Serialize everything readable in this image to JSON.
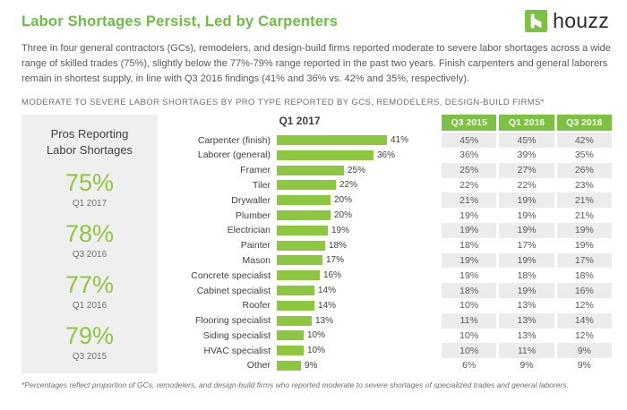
{
  "page": {
    "title": "Labor Shortages Persist, Led by Carpenters",
    "logo_text": "houzz",
    "intro": "Three in four general contractors (GCs), remodelers, and design-build firms reported moderate to severe labor shortages across a wide range of skilled trades (75%), slightly below the 77%-79% range reported in the past two years. Finish carpenters and general laborers remain in shortest supply, in line with Q3 2016 findings (41% and 36% vs. 42% and 35%, respectively).",
    "section_header": "MODERATE TO SEVERE LABOR SHORTAGES BY PRO TYPE REPORTED BY GCS, REMODELERS, DESIGN-BUILD FIRMS*",
    "footnote": "*Percentages reflect proportion of GCs, remodelers, and design-build firms who reported moderate to severe shortages of specialized trades and general laborers."
  },
  "colors": {
    "brand_green": "#7cc142",
    "title_green": "#6cbe45",
    "bar_green": "#8dc63f",
    "stat_green": "#8dc63f",
    "panel_gray": "#efefef",
    "alt_row_gray": "#ececec"
  },
  "summary_panel": {
    "title": "Pros Reporting Labor Shortages",
    "stats": [
      {
        "value": "75%",
        "period": "Q1 2017"
      },
      {
        "value": "78%",
        "period": "Q3 2016"
      },
      {
        "value": "77%",
        "period": "Q1 2016"
      },
      {
        "value": "79%",
        "period": "Q3 2015"
      }
    ]
  },
  "chart_data": {
    "type": "bar",
    "orientation": "horizontal",
    "title": "Q1 2017",
    "unit": "%",
    "xlim": [
      0,
      45
    ],
    "grid": false,
    "legend": "none",
    "bar_color": "#8dc63f",
    "categories": [
      "Carpenter (finish)",
      "Laborer (general)",
      "Framer",
      "Tiler",
      "Drywaller",
      "Plumber",
      "Electrician",
      "Painter",
      "Mason",
      "Concrete specialist",
      "Cabinet specialist",
      "Roofer",
      "Flooring specialist",
      "Siding specialist",
      "HVAC specialist",
      "Other"
    ],
    "values": [
      41,
      36,
      25,
      22,
      20,
      20,
      19,
      18,
      17,
      16,
      14,
      14,
      13,
      10,
      10,
      9
    ],
    "table": {
      "columns": [
        "Q3 2015",
        "Q1 2016",
        "Q3 2016"
      ],
      "rows": [
        [
          45,
          45,
          42
        ],
        [
          36,
          39,
          35
        ],
        [
          25,
          27,
          26
        ],
        [
          22,
          22,
          23
        ],
        [
          21,
          19,
          21
        ],
        [
          19,
          19,
          21
        ],
        [
          19,
          19,
          19
        ],
        [
          18,
          17,
          19
        ],
        [
          19,
          19,
          17
        ],
        [
          19,
          18,
          18
        ],
        [
          18,
          19,
          16
        ],
        [
          10,
          13,
          12
        ],
        [
          11,
          13,
          14
        ],
        [
          10,
          13,
          12
        ],
        [
          10,
          11,
          9
        ],
        [
          6,
          9,
          9
        ]
      ]
    }
  }
}
